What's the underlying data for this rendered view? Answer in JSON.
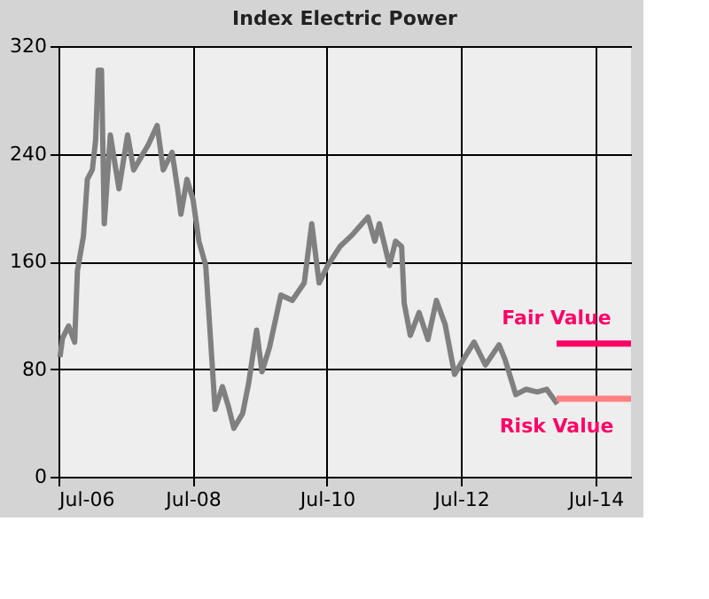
{
  "chart_data": {
    "type": "line",
    "title": "Index Electric Power",
    "xlim": [
      "2006-07-01",
      "2015-01-10"
    ],
    "ylim": [
      0,
      320
    ],
    "xticks": [
      {
        "value": "2006-07-01",
        "label": "Jul-06"
      },
      {
        "value": "2008-07-01",
        "label": "Jul-08"
      },
      {
        "value": "2010-07-01",
        "label": "Jul-10"
      },
      {
        "value": "2012-07-01",
        "label": "Jul-12"
      },
      {
        "value": "2014-07-01",
        "label": "Jul-14"
      }
    ],
    "yticks": [
      0,
      80,
      160,
      240,
      320
    ],
    "grid": true,
    "marker": "none",
    "line_style": "solid",
    "series": [
      {
        "color": "#808080",
        "x": [
          "2006-07-09",
          "2006-07-23",
          "2006-08-25",
          "2006-09-27",
          "2006-10-12",
          "2006-11-14",
          "2006-12-05",
          "2007-01-01",
          "2007-01-19",
          "2007-02-02",
          "2007-02-20",
          "2007-03-07",
          "2007-04-09",
          "2007-05-26",
          "2007-07-12",
          "2007-08-14",
          "2007-11-03",
          "2007-12-20",
          "2008-01-22",
          "2008-03-10",
          "2008-04-09",
          "2008-04-27",
          "2008-05-30",
          "2008-07-02",
          "2008-08-03",
          "2008-09-09",
          "2008-10-04",
          "2008-10-30",
          "2008-12-09",
          "2009-01-11",
          "2009-02-09",
          "2009-03-29",
          "2009-04-30",
          "2009-06-13",
          "2009-07-12",
          "2009-08-22",
          "2009-10-23",
          "2009-12-24",
          "2010-02-27",
          "2010-04-09",
          "2010-05-19",
          "2010-07-05",
          "2010-09-09",
          "2010-11-10",
          "2011-02-09",
          "2011-03-18",
          "2011-04-12",
          "2011-06-06",
          "2011-07-09",
          "2011-08-11",
          "2011-08-25",
          "2011-09-27",
          "2011-11-14",
          "2012-01-01",
          "2012-02-16",
          "2012-04-04",
          "2012-05-25",
          "2012-07-11",
          "2012-09-08",
          "2012-11-09",
          "2013-01-22",
          "2013-02-24",
          "2013-04-23",
          "2013-06-17",
          "2013-08-18",
          "2013-10-08",
          "2013-12-05"
        ],
        "values": [
          89,
          103,
          112,
          100,
          153,
          179,
          221,
          228,
          250,
          302,
          302,
          188,
          254,
          214,
          254,
          228,
          247,
          261,
          228,
          241,
          214,
          195,
          221,
          206,
          175,
          157,
          105,
          50,
          67,
          52,
          36,
          47,
          69,
          109,
          78,
          96,
          135,
          131,
          144,
          188,
          144,
          157,
          171,
          179,
          193,
          175,
          188,
          157,
          175,
          171,
          129,
          105,
          122,
          102,
          131,
          113,
          76,
          87,
          100,
          83,
          98,
          87,
          61,
          65,
          63,
          65,
          54
        ]
      },
      {
        "name": "Fair Value",
        "color": "#ff0066",
        "x": [
          "2013-12-01",
          "2015-01-10"
        ],
        "values": [
          99,
          99
        ]
      },
      {
        "name": "Risk Value",
        "color": "#ff8080",
        "x": [
          "2013-12-01",
          "2015-01-10"
        ],
        "values": [
          58,
          58
        ]
      }
    ]
  }
}
